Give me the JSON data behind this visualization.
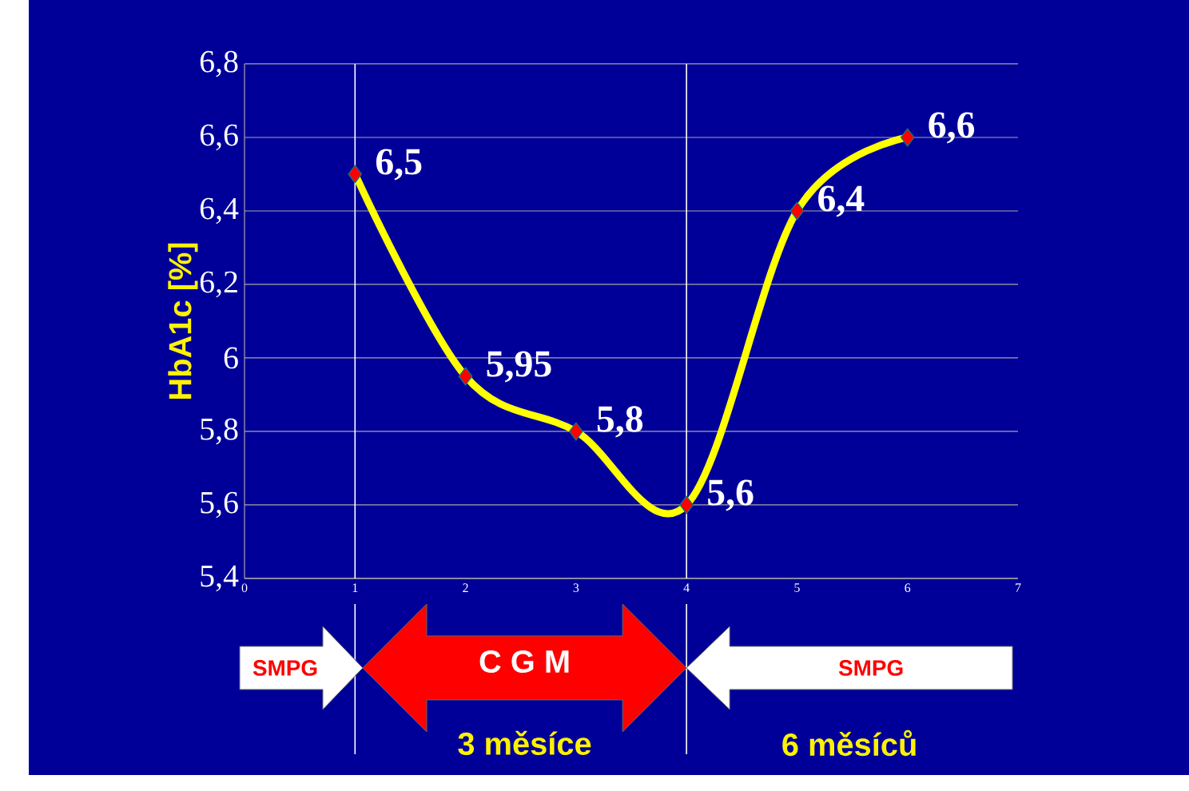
{
  "chart_data": {
    "type": "line",
    "ylabel": "HbA1c [%]",
    "x": [
      1,
      2,
      3,
      4,
      5,
      6
    ],
    "values": [
      6.5,
      5.95,
      5.8,
      5.6,
      6.4,
      6.6
    ],
    "value_labels": [
      "6,5",
      "5,95",
      "5,8",
      "5,6",
      "6,4",
      "6,6"
    ],
    "color": "#ffff00",
    "marker": "diamond",
    "grid": "y",
    "xlim": [
      0,
      7
    ],
    "ylim": [
      5.4,
      6.8
    ],
    "xticks": [
      0,
      1,
      2,
      3,
      4,
      5,
      6,
      7
    ],
    "yticks": [
      {
        "value": 5.4,
        "label": "5,4"
      },
      {
        "value": 5.6,
        "label": "5,6"
      },
      {
        "value": 5.8,
        "label": "5,8"
      },
      {
        "value": 6,
        "label": "6"
      },
      {
        "value": 6.2,
        "label": "6,2"
      },
      {
        "value": 6.4,
        "label": "6,4"
      },
      {
        "value": 6.6,
        "label": "6,6"
      },
      {
        "value": 6.8,
        "label": "6,8"
      }
    ],
    "ref_lines": [
      {
        "axis": "x",
        "value": 1,
        "color": "#ffffff"
      },
      {
        "axis": "x",
        "value": 4,
        "color": "#ffffff"
      }
    ],
    "annotations": [
      "SMPG",
      "C G M",
      "SMPG",
      "3 měsíce",
      "6 měsíců"
    ]
  }
}
